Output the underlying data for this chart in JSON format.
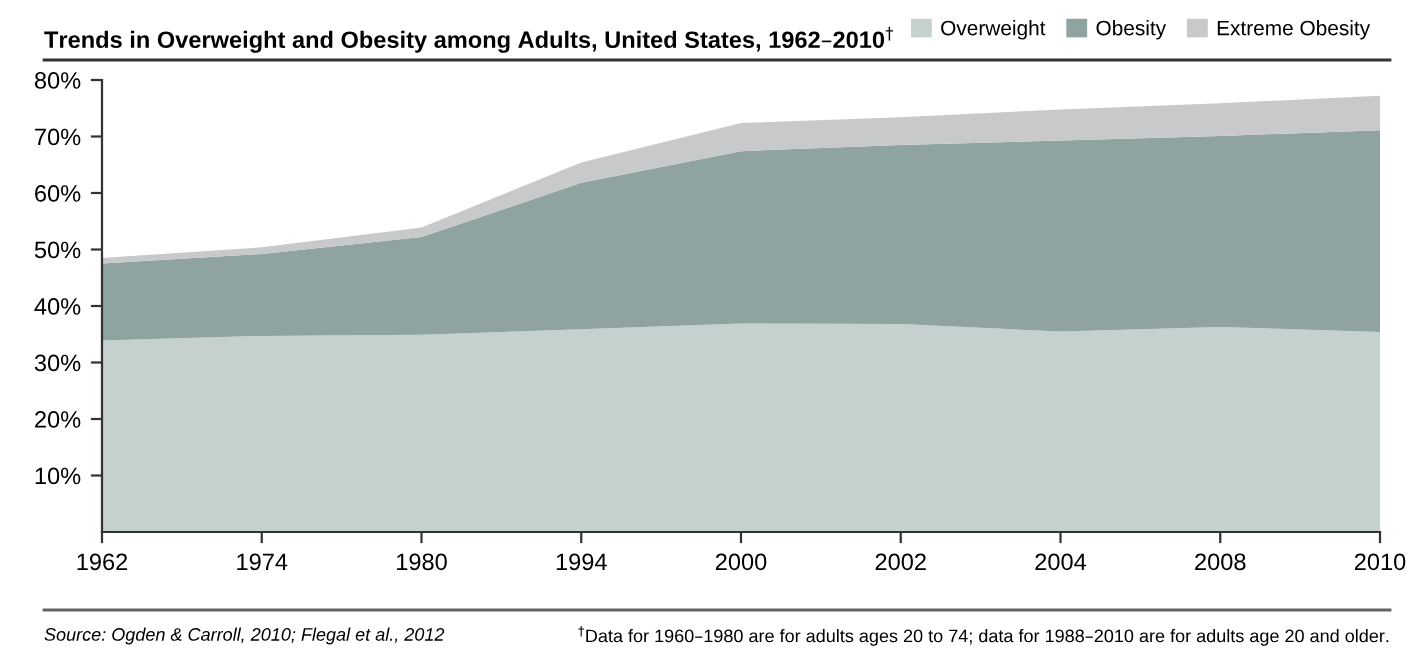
{
  "chart_data": {
    "type": "area",
    "stacked": true,
    "title": "Trends in Overweight and Obesity among Adults, United States, 1962–2010$^{†}$",
    "categories": [
      "1962",
      "1974",
      "1980",
      "1994",
      "2000",
      "2002",
      "2004",
      "2008",
      "2010"
    ],
    "ylim": [
      0,
      80
    ],
    "yticks": [
      {
        "value": 10,
        "label": "10%"
      },
      {
        "value": 20,
        "label": "20%"
      },
      {
        "value": 30,
        "label": "30%"
      },
      {
        "value": 40,
        "label": "40%"
      },
      {
        "value": 50,
        "label": "50%"
      },
      {
        "value": 60,
        "label": "60%"
      },
      {
        "value": 70,
        "label": "70%"
      },
      {
        "value": 80,
        "label": "80%"
      }
    ],
    "series": [
      {
        "name": "Overweight",
        "color": "#c5d1cf",
        "values": [
          33.9,
          34.7,
          34.9,
          35.9,
          36.9,
          36.8,
          35.5,
          36.3,
          35.4
        ]
      },
      {
        "name": "Obesity",
        "color": "#8fa3a1",
        "values": [
          13.6,
          14.5,
          17.3,
          25.9,
          30.5,
          31.7,
          33.8,
          33.8,
          35.7
        ]
      },
      {
        "name": "Extreme Obesity",
        "color": "#c8c9cb",
        "values": [
          1.0,
          1.2,
          1.7,
          3.6,
          5.0,
          4.9,
          5.5,
          5.8,
          6.1
        ]
      }
    ],
    "legend": "top right",
    "grid": false,
    "annotations": [
      "Source: Ogden & Carroll, 2010; Flegal et al., 2012",
      "$^{†}$Data for 1960–1980 are for adults ages 20 to 74; data for 1988–2010 are for adults age 20 and older."
    ]
  }
}
